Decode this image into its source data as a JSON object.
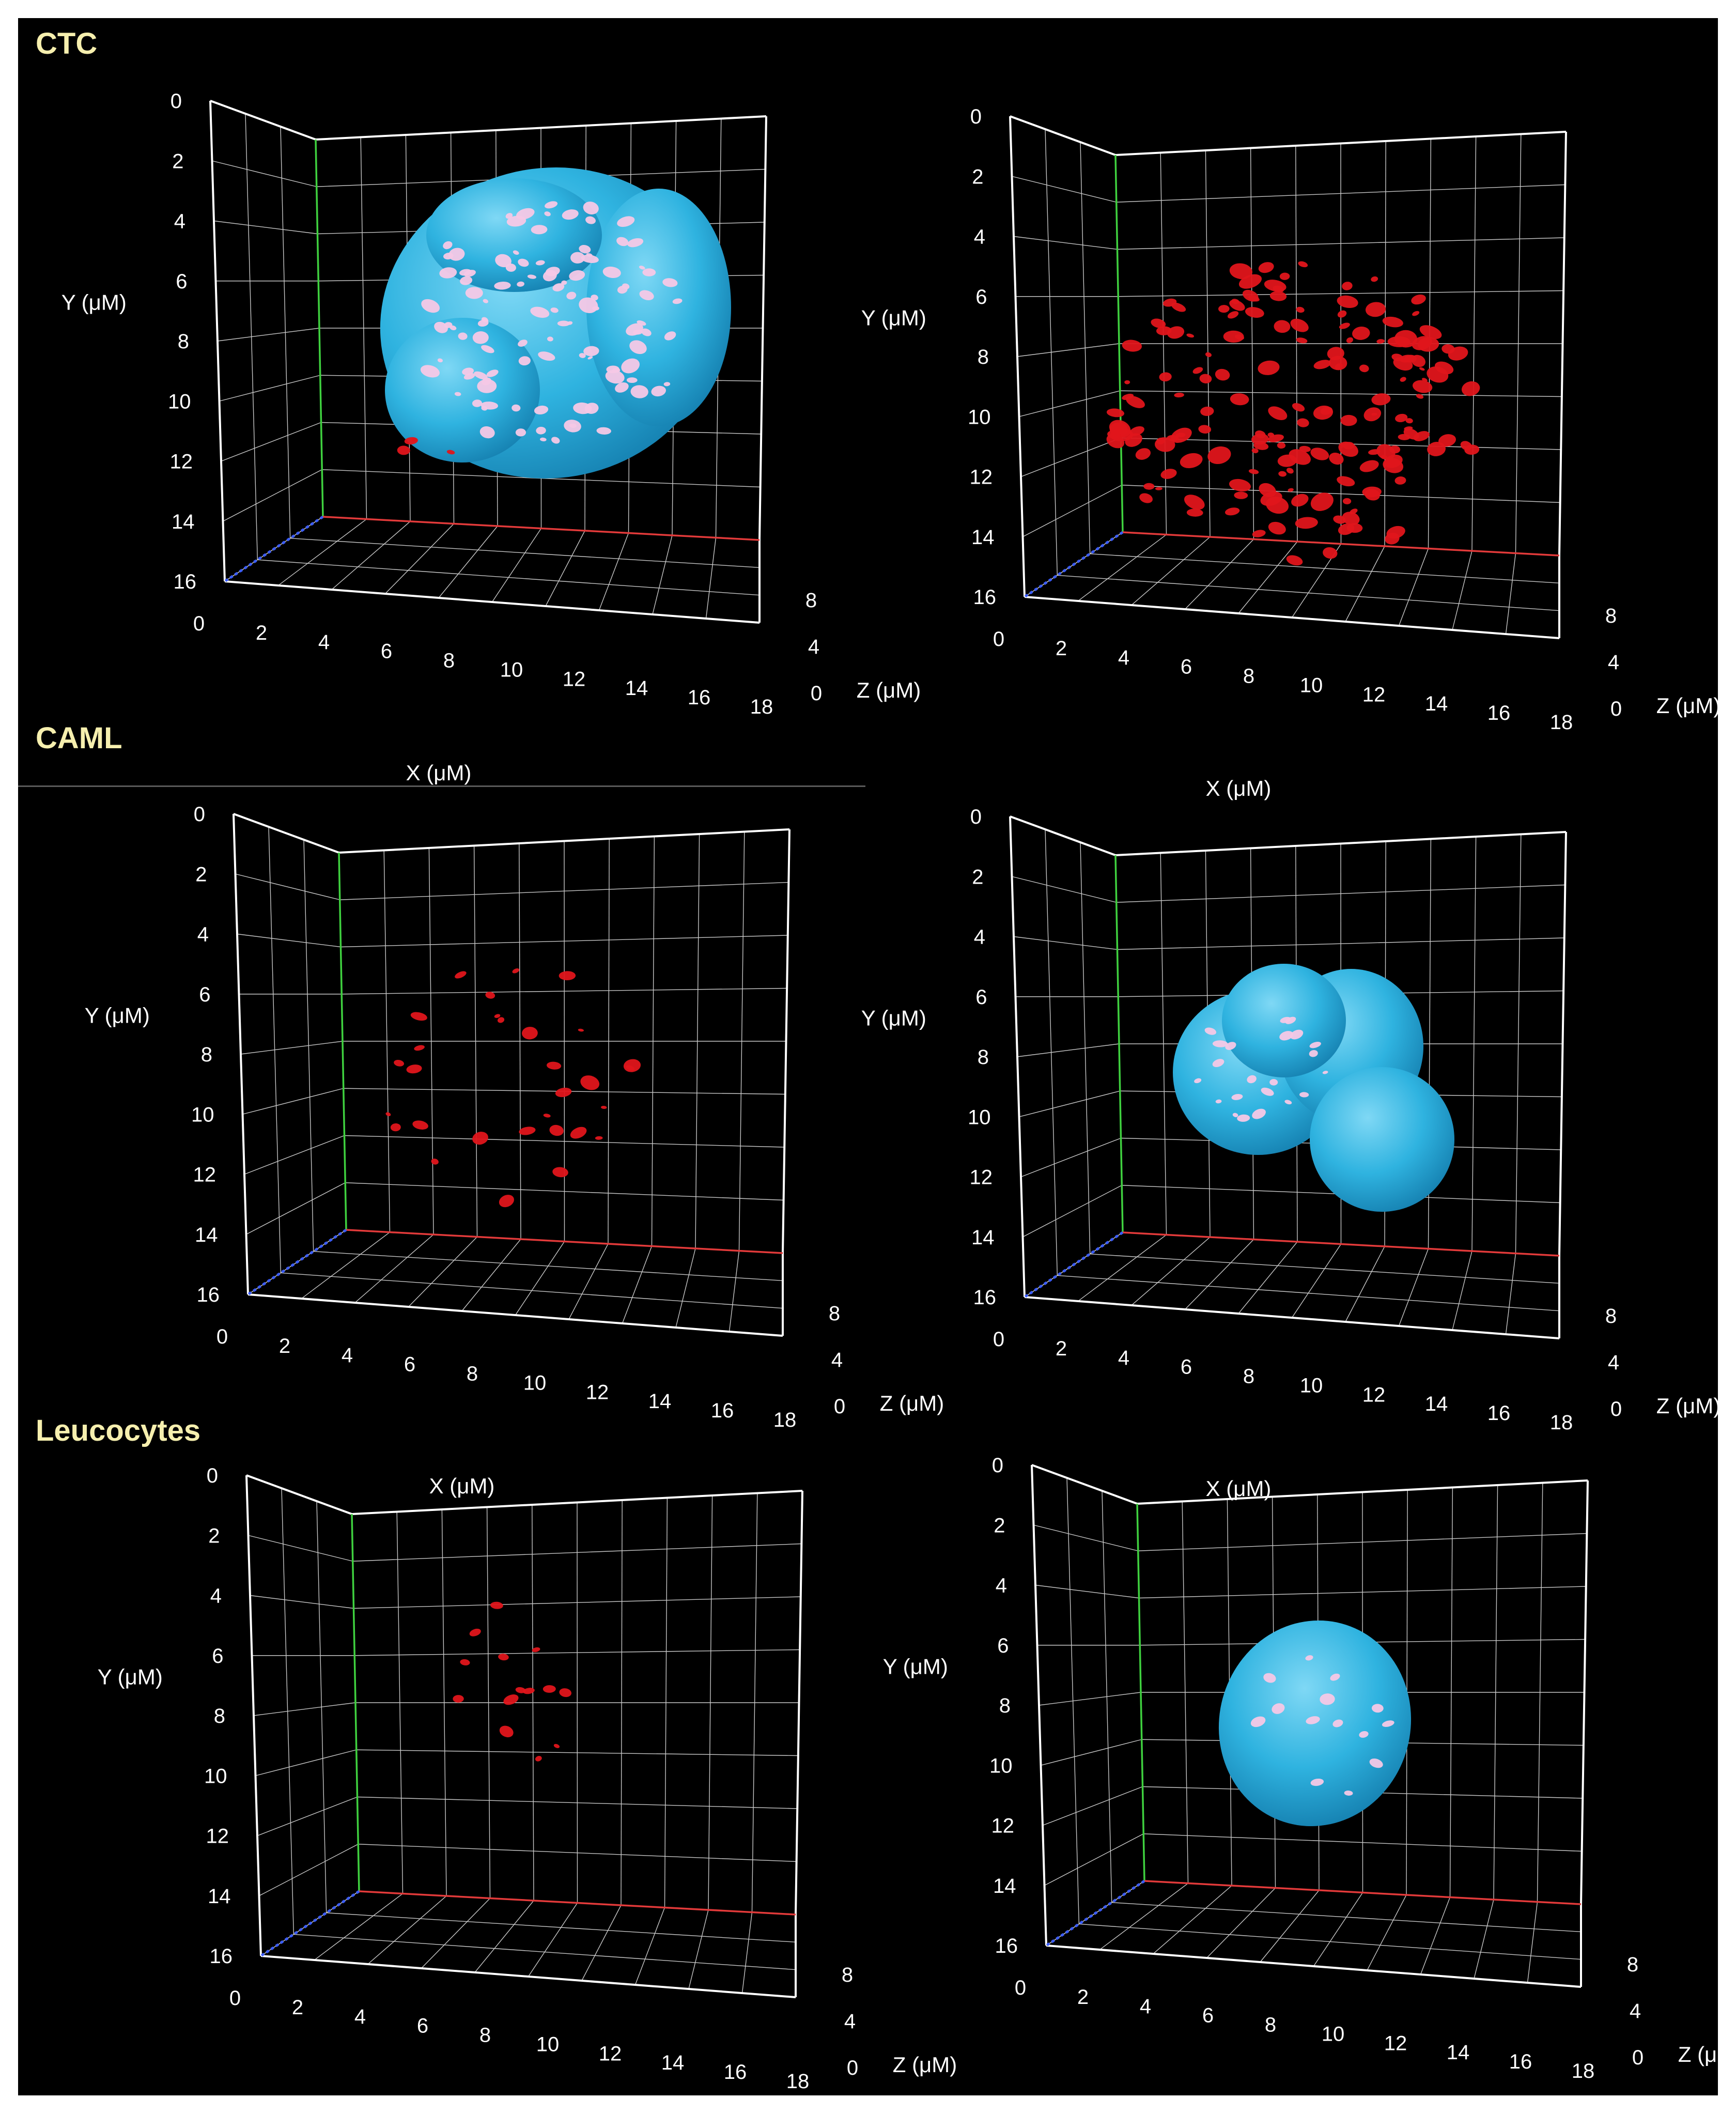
{
  "sections": [
    {
      "label": "CTC"
    },
    {
      "label": "CAML"
    },
    {
      "label": "Leucocytes"
    }
  ],
  "axes": {
    "y_label": "Y (μM)",
    "x_label": "X (μM)",
    "z_label": "Z (μM)",
    "y_ticks": [
      "0",
      "2",
      "4",
      "6",
      "8",
      "10",
      "12",
      "14",
      "16"
    ],
    "x_ticks": [
      "0",
      "2",
      "4",
      "6",
      "8",
      "10",
      "12",
      "14",
      "16",
      "18"
    ],
    "z_ticks": [
      "0",
      "4",
      "8"
    ]
  },
  "colors": {
    "background": "#000000",
    "nucleus": "#2fb3e0",
    "foci_red": "#e0151b",
    "foci_pink": "#f5c8e6",
    "grid": "#c8c8c8",
    "axis_y": "#3fd13f",
    "axis_x": "#e23a3a",
    "axis_z": "#3a5cff",
    "section_label": "#f6efae"
  },
  "panels": [
    {
      "id": "ctc-nucleus",
      "content": "nucleus-with-foci"
    },
    {
      "id": "ctc-foci",
      "content": "red-foci"
    },
    {
      "id": "caml-foci",
      "content": "red-foci"
    },
    {
      "id": "caml-nucleus",
      "content": "nucleus-with-foci"
    },
    {
      "id": "leuco-foci",
      "content": "red-foci"
    },
    {
      "id": "leuco-nucleus",
      "content": "nucleus-with-foci"
    }
  ]
}
